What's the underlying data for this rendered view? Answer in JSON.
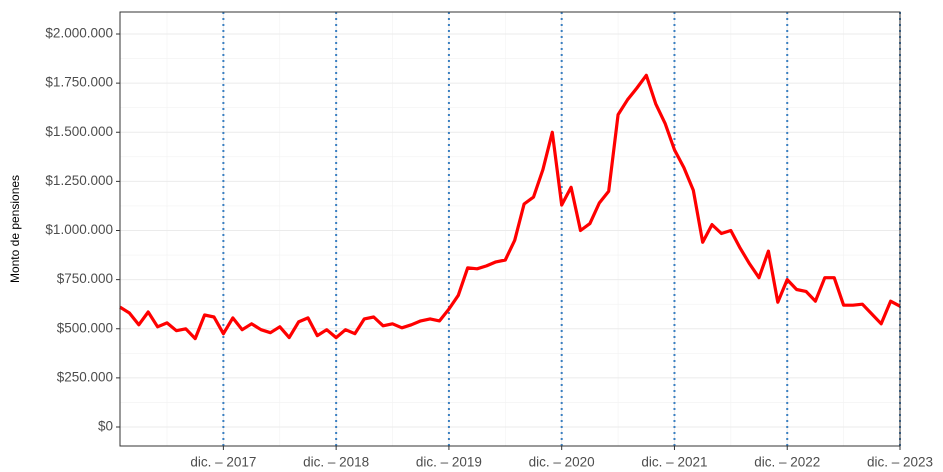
{
  "chart_data": {
    "type": "line",
    "ylabel": "Monto de pensiones",
    "categories": [
      null,
      null,
      null,
      null,
      null,
      null,
      null,
      null,
      null,
      null,
      null,
      "dic. – 2017",
      null,
      null,
      null,
      null,
      null,
      null,
      null,
      null,
      null,
      null,
      null,
      "dic. – 2018",
      null,
      null,
      null,
      null,
      null,
      null,
      null,
      null,
      null,
      null,
      null,
      "dic. – 2019",
      null,
      null,
      null,
      null,
      null,
      null,
      null,
      null,
      null,
      null,
      null,
      "dic. – 2020",
      null,
      null,
      null,
      null,
      null,
      null,
      null,
      null,
      null,
      null,
      null,
      "dic. – 2021",
      null,
      null,
      null,
      null,
      null,
      null,
      null,
      null,
      null,
      null,
      null,
      "dic. – 2022",
      null,
      null,
      null,
      null,
      null,
      null,
      null,
      null,
      null,
      null,
      null,
      "dic. – 2023"
    ],
    "series": [
      {
        "name": "Monto de pensiones",
        "color": "#ff0000",
        "values": [
          610000,
          580000,
          520000,
          585000,
          510000,
          530000,
          490000,
          500000,
          450000,
          570000,
          560000,
          475000,
          555000,
          495000,
          525000,
          495000,
          480000,
          510000,
          455000,
          535000,
          555000,
          465000,
          495000,
          455000,
          495000,
          475000,
          550000,
          560000,
          515000,
          525000,
          505000,
          520000,
          540000,
          550000,
          540000,
          600000,
          670000,
          810000,
          805000,
          820000,
          840000,
          850000,
          950000,
          1135000,
          1170000,
          1310000,
          1500000,
          1130000,
          1220000,
          1000000,
          1035000,
          1140000,
          1200000,
          1590000,
          1665000,
          1725000,
          1790000,
          1645000,
          1545000,
          1410000,
          1320000,
          1205000,
          940000,
          1030000,
          985000,
          1000000,
          910000,
          830000,
          760000,
          895000,
          635000,
          750000,
          700000,
          690000,
          640000,
          760000,
          760000,
          620000,
          620000,
          625000,
          575000,
          525000,
          640000,
          615000
        ]
      }
    ],
    "ylim": [
      -96700,
      2112000
    ],
    "yticks": [
      {
        "value": 0,
        "label": "$0"
      },
      {
        "value": 250000,
        "label": "$250.000"
      },
      {
        "value": 500000,
        "label": "$500.000"
      },
      {
        "value": 750000,
        "label": "$750.000"
      },
      {
        "value": 1000000,
        "label": "$1.000.000"
      },
      {
        "value": 1250000,
        "label": "$1.250.000"
      },
      {
        "value": 1500000,
        "label": "$1.500.000"
      },
      {
        "value": 1750000,
        "label": "$1.750.000"
      },
      {
        "value": 2000000,
        "label": "$2.000.000"
      }
    ],
    "grid": true,
    "vline_color": "#3a7fc1"
  }
}
